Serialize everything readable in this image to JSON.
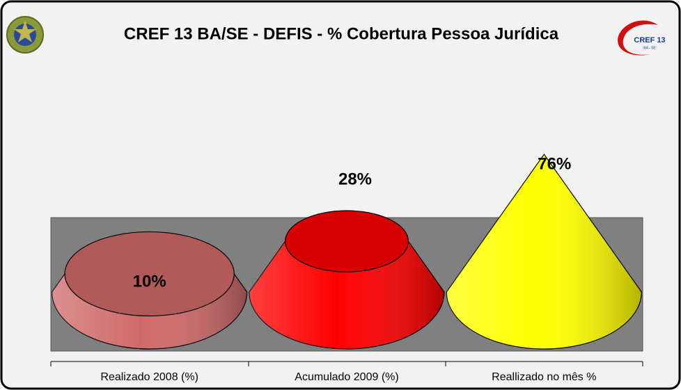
{
  "chart_data": {
    "type": "cone",
    "title": "CREF 13 BA/SE - DEFIS - % Cobertura Pessoa Jurídica",
    "categories": [
      "Realizado 2008 (%)",
      "Acumulado 2009 (%)",
      "Reallizado no mês %"
    ],
    "values": [
      10,
      28,
      76
    ],
    "value_labels": [
      "10%",
      "28%",
      "76%"
    ],
    "colors": [
      "#d06a6a",
      "#ff0000",
      "#ffff00"
    ]
  },
  "logo": {
    "text": "CREF 13",
    "subtext": "BA - SE"
  }
}
